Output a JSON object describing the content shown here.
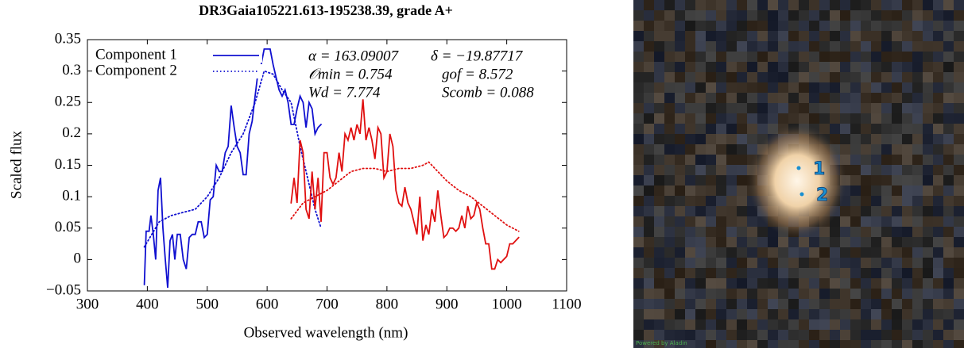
{
  "chart_data": {
    "type": "line",
    "title": "DR3Gaia105221.613-195238.39, grade A+",
    "x_label": "Observed wavelength (nm)",
    "y_label": "Scaled flux",
    "xlim": [
      300,
      1100
    ],
    "ylim": [
      -0.05,
      0.35
    ],
    "xticks": [
      300,
      400,
      500,
      600,
      700,
      800,
      900,
      1000,
      1100
    ],
    "yticks": [
      {
        "value": -0.05,
        "label": "−0.05"
      },
      0,
      0.05,
      0.1,
      0.15,
      0.2,
      0.25,
      0.3,
      0.35
    ],
    "grid": false,
    "legend": "upper left",
    "annotations": [
      "α = 163.09007",
      "δ = −19.87717",
      "𝒪min = 0.754",
      "gof = 8.572",
      "Wd = 7.774",
      "Scomb = 0.088"
    ],
    "series": [
      {
        "name": "Component 1",
        "color": "#1010d0",
        "style": "solid",
        "x": [
          395,
          398,
          403,
          406,
          410,
          414,
          418,
          422,
          426,
          430,
          434,
          438,
          442,
          446,
          450,
          455,
          460,
          465,
          470,
          475,
          480,
          485,
          490,
          495,
          500,
          505,
          510,
          515,
          520,
          525,
          530,
          535,
          540,
          545,
          550,
          555,
          560,
          565,
          570,
          575,
          580,
          585,
          590,
          595,
          600,
          605,
          610,
          615,
          620,
          625,
          630,
          635,
          640,
          645,
          650,
          655,
          660,
          665,
          670,
          675,
          680,
          685,
          690
        ],
        "values": [
          -0.04,
          0.045,
          0.045,
          0.07,
          0.04,
          0.0,
          0.11,
          0.13,
          0.05,
          0.0,
          -0.045,
          0.03,
          0.04,
          0.0,
          0.04,
          0.04,
          0.0,
          -0.015,
          0.035,
          0.04,
          0.04,
          0.06,
          0.06,
          0.035,
          0.04,
          0.095,
          0.1,
          0.15,
          0.14,
          0.14,
          0.17,
          0.18,
          0.245,
          0.21,
          0.18,
          0.17,
          0.135,
          0.135,
          0.2,
          0.22,
          0.26,
          0.3,
          0.31,
          0.335,
          0.335,
          0.335,
          0.31,
          0.29,
          0.27,
          0.26,
          0.27,
          0.25,
          0.215,
          0.215,
          0.24,
          0.26,
          0.25,
          0.21,
          0.25,
          0.24,
          0.2,
          0.21,
          0.215
        ]
      },
      {
        "name": "Component 2",
        "color": "#1010d0",
        "style": "dotted",
        "x": [
          395,
          420,
          440,
          460,
          480,
          500,
          520,
          540,
          560,
          580,
          595,
          610,
          625,
          640,
          655,
          670,
          680,
          690
        ],
        "values": [
          0.02,
          0.06,
          0.07,
          0.075,
          0.08,
          0.1,
          0.13,
          0.17,
          0.2,
          0.25,
          0.3,
          0.295,
          0.27,
          0.25,
          0.18,
          0.12,
          0.08,
          0.05
        ]
      },
      {
        "color": "#e01010",
        "style": "solid",
        "x": [
          640,
          645,
          650,
          655,
          660,
          665,
          670,
          675,
          680,
          685,
          690,
          695,
          700,
          705,
          710,
          715,
          720,
          725,
          730,
          735,
          740,
          745,
          750,
          755,
          760,
          765,
          770,
          775,
          780,
          785,
          790,
          795,
          800,
          805,
          810,
          815,
          820,
          825,
          830,
          835,
          840,
          845,
          850,
          855,
          860,
          865,
          870,
          875,
          880,
          885,
          890,
          895,
          900,
          905,
          910,
          915,
          920,
          925,
          930,
          935,
          940,
          945,
          950,
          955,
          960,
          965,
          970,
          975,
          980,
          985,
          990,
          1000,
          1005,
          1010,
          1015,
          1020
        ],
        "values": [
          0.09,
          0.13,
          0.09,
          0.19,
          0.17,
          0.08,
          0.065,
          0.14,
          0.08,
          0.13,
          0.06,
          0.17,
          0.17,
          0.13,
          0.12,
          0.13,
          0.17,
          0.14,
          0.2,
          0.19,
          0.21,
          0.19,
          0.215,
          0.2,
          0.255,
          0.19,
          0.21,
          0.19,
          0.16,
          0.21,
          0.2,
          0.13,
          0.14,
          0.2,
          0.18,
          0.11,
          0.09,
          0.085,
          0.115,
          0.09,
          0.08,
          0.06,
          0.04,
          0.1,
          0.03,
          0.055,
          0.04,
          0.08,
          0.06,
          0.11,
          0.07,
          0.035,
          0.04,
          0.05,
          0.05,
          0.045,
          0.05,
          0.07,
          0.05,
          0.085,
          0.065,
          0.07,
          0.09,
          0.08,
          0.05,
          0.025,
          0.025,
          -0.015,
          -0.015,
          0.0,
          -0.005,
          0.005,
          0.025,
          0.025,
          0.03,
          0.035
        ]
      },
      {
        "color": "#e01010",
        "style": "dotted",
        "x": [
          640,
          660,
          680,
          700,
          720,
          740,
          760,
          780,
          800,
          820,
          840,
          860,
          870,
          880,
          900,
          920,
          940,
          960,
          980,
          1000,
          1020
        ],
        "values": [
          0.065,
          0.09,
          0.1,
          0.11,
          0.125,
          0.14,
          0.145,
          0.145,
          0.14,
          0.145,
          0.145,
          0.15,
          0.155,
          0.145,
          0.125,
          0.11,
          0.1,
          0.085,
          0.07,
          0.055,
          0.045
        ]
      }
    ]
  },
  "image": {
    "markers": [
      "1",
      "2"
    ],
    "credit": "Powered by Aladin"
  }
}
